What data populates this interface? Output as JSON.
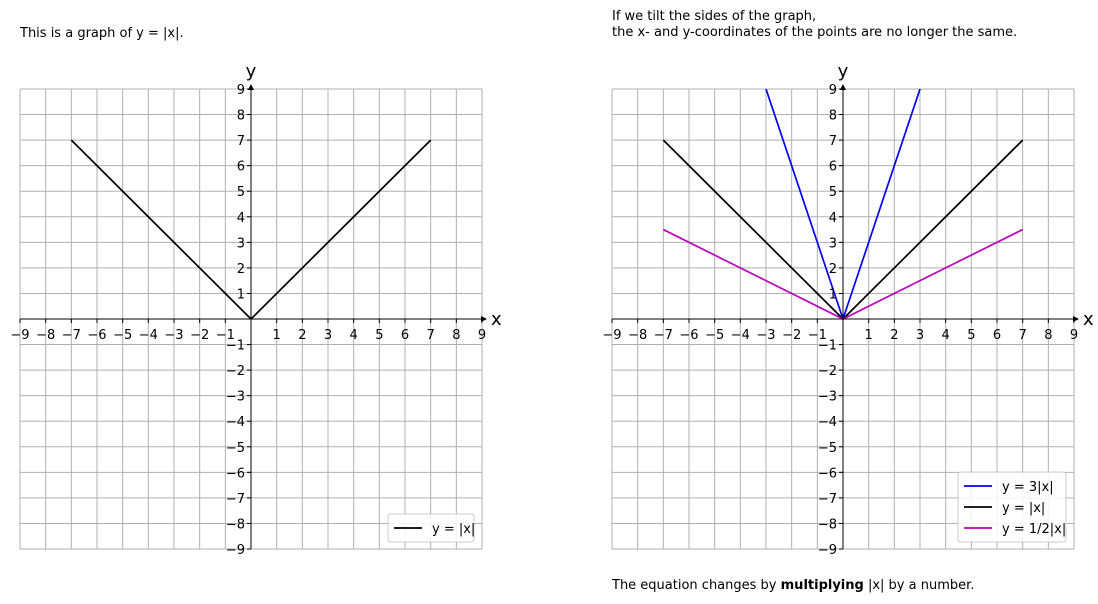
{
  "notes": {
    "left": "This is a graph of y = |x|.",
    "right_line1": "If we tilt the sides of the graph,",
    "right_line2": "the x- and y-coordinates of the points are no longer the same.",
    "bottom_pre": "The equation changes by ",
    "bottom_bold": "multiplying",
    "bottom_post": " |x| by a number."
  },
  "chart_data": [
    {
      "type": "line",
      "xlabel": "x",
      "ylabel": "y",
      "xlim": [
        -9,
        9
      ],
      "ylim": [
        -9,
        9
      ],
      "grid": true,
      "legend_position": "lower-right",
      "ticks": [
        -9,
        -8,
        -7,
        -6,
        -5,
        -4,
        -3,
        -2,
        -1,
        1,
        2,
        3,
        4,
        5,
        6,
        7,
        8,
        9
      ],
      "series": [
        {
          "name": "y = |x|",
          "color": "#000000",
          "x": [
            -7,
            0,
            7
          ],
          "y": [
            7,
            0,
            7
          ]
        }
      ]
    },
    {
      "type": "line",
      "xlabel": "x",
      "ylabel": "y",
      "xlim": [
        -9,
        9
      ],
      "ylim": [
        -9,
        9
      ],
      "grid": true,
      "legend_position": "lower-right",
      "ticks": [
        -9,
        -8,
        -7,
        -6,
        -5,
        -4,
        -3,
        -2,
        -1,
        1,
        2,
        3,
        4,
        5,
        6,
        7,
        8,
        9
      ],
      "series": [
        {
          "name": "y = 3|x|",
          "color": "#0000ff",
          "x": [
            -7,
            0,
            7
          ],
          "y": [
            21,
            0,
            21
          ]
        },
        {
          "name": "y = |x|",
          "color": "#000000",
          "x": [
            -7,
            0,
            7
          ],
          "y": [
            7,
            0,
            7
          ]
        },
        {
          "name": "y = 1/2|x|",
          "color": "#bf00bf",
          "x": [
            -7,
            0,
            7
          ],
          "y": [
            3.5,
            0,
            3.5
          ]
        }
      ]
    }
  ]
}
